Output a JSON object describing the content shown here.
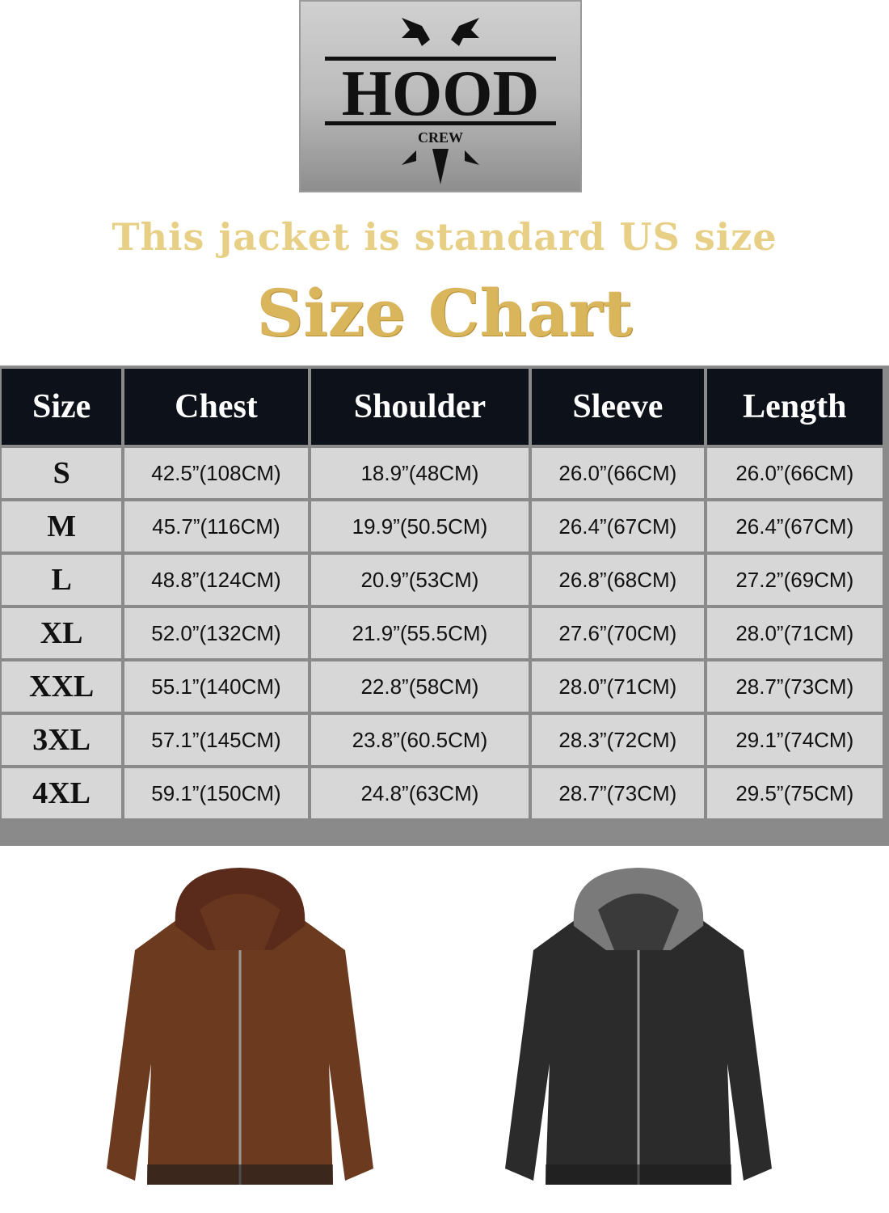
{
  "logo": {
    "text": "HOOD",
    "subtext": "CREW"
  },
  "tagline": "This jacket is standard US size",
  "title": "Size Chart",
  "colors": {
    "gold": "#d9b55c",
    "header_bg": "#0c111a",
    "cell_bg": "#d7d7d7",
    "grid": "#8a8a8a"
  },
  "table": {
    "headers": [
      "Size",
      "Chest",
      "Shoulder",
      "Sleeve",
      "Length"
    ],
    "rows": [
      [
        "S",
        "42.5”(108CM)",
        "18.9”(48CM)",
        "26.0”(66CM)",
        "26.0”(66CM)"
      ],
      [
        "M",
        "45.7”(116CM)",
        "19.9”(50.5CM)",
        "26.4”(67CM)",
        "26.4”(67CM)"
      ],
      [
        "L",
        "48.8”(124CM)",
        "20.9”(53CM)",
        "26.8”(68CM)",
        "27.2”(69CM)"
      ],
      [
        "XL",
        "52.0”(132CM)",
        "21.9”(55.5CM)",
        "27.6”(70CM)",
        "28.0”(71CM)"
      ],
      [
        "XXL",
        "55.1”(140CM)",
        "22.8”(58CM)",
        "28.0”(71CM)",
        "28.7”(73CM)"
      ],
      [
        "3XL",
        "57.1”(145CM)",
        "23.8”(60.5CM)",
        "28.3”(72CM)",
        "29.1”(74CM)"
      ],
      [
        "4XL",
        "59.1”(150CM)",
        "24.8”(63CM)",
        "28.7”(73CM)",
        "29.5”(75CM)"
      ]
    ]
  },
  "products": [
    {
      "color_name": "brown",
      "color": "#6b3a1f",
      "hood": "#5a2a1a"
    },
    {
      "color_name": "black",
      "color": "#2b2b2b",
      "hood": "#7a7a7a"
    }
  ]
}
